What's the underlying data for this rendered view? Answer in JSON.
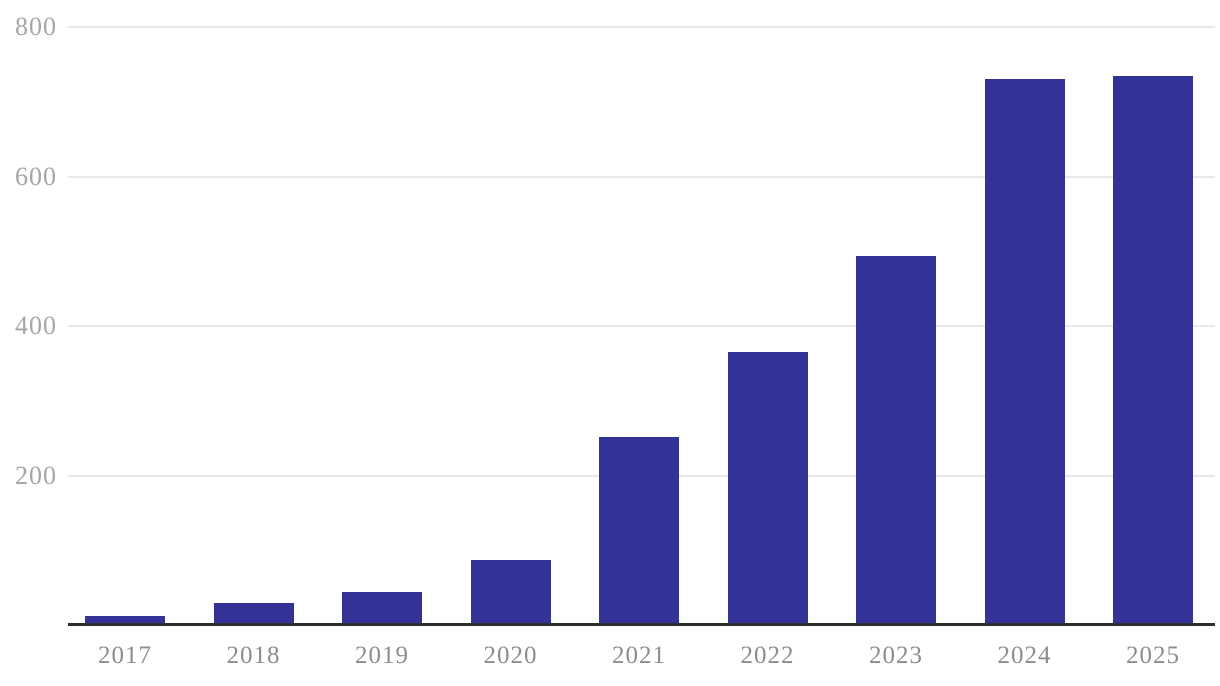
{
  "chart_data": {
    "type": "bar",
    "title": "",
    "subtitle": "",
    "xlabel": "",
    "ylabel": "",
    "categories": [
      "2017",
      "2018",
      "2019",
      "2020",
      "2021",
      "2022",
      "2023",
      "2024",
      "2025"
    ],
    "values": [
      12,
      30,
      44,
      87,
      252,
      365,
      493,
      730,
      734
    ],
    "y_ticks": [
      "200",
      "400",
      "600",
      "800"
    ],
    "y_tick_values": [
      200,
      400,
      600,
      800
    ],
    "ylim": [
      0,
      800
    ],
    "grid": true,
    "legend_position": "none",
    "colors": {
      "bar": "#333296",
      "gridline": "#e8e8e8",
      "axis_line": "#2e2e2e",
      "y_tick_text": "#a6a6a6",
      "x_tick_text": "#8d8d8d",
      "background": "#ffffff"
    }
  }
}
